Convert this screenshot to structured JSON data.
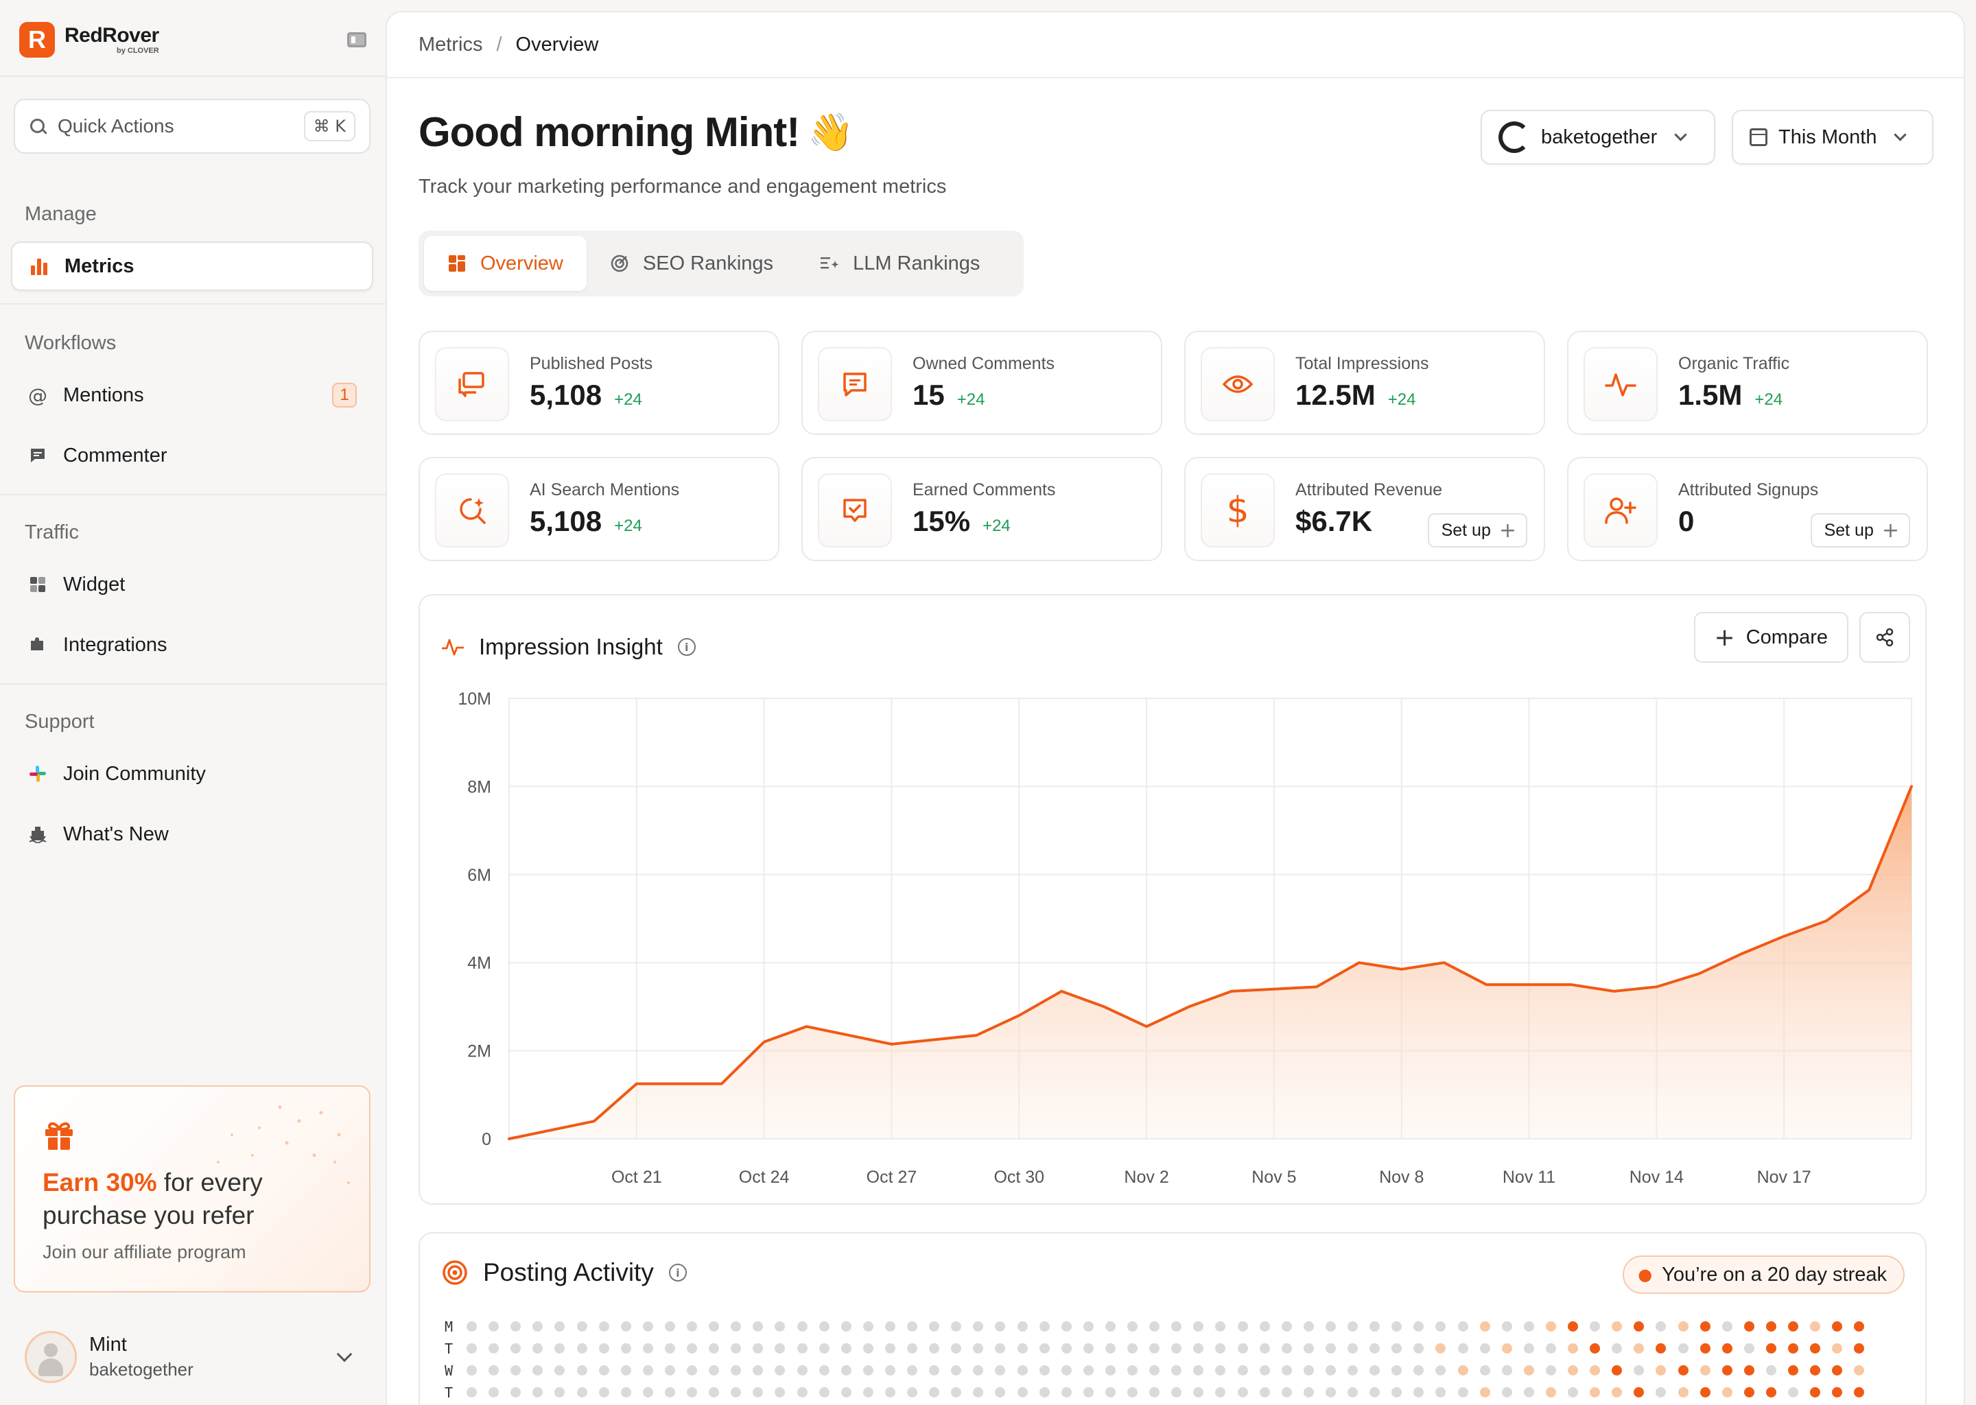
{
  "sidebar": {
    "logo": {
      "mark": "R",
      "name": "RedRover",
      "sub": "by CLOVER"
    },
    "quick_actions": {
      "label": "Quick Actions",
      "shortcut": "⌘ K"
    },
    "sections": [
      {
        "label": "Manage",
        "items": [
          {
            "label": "Metrics",
            "icon": "bar-chart-icon",
            "active": true
          }
        ]
      },
      {
        "label": "Workflows",
        "items": [
          {
            "label": "Mentions",
            "icon": "at-sign-icon",
            "badge": "1"
          },
          {
            "label": "Commenter",
            "icon": "comment-icon"
          }
        ]
      },
      {
        "label": "Traffic",
        "items": [
          {
            "label": "Widget",
            "icon": "grid-icon"
          },
          {
            "label": "Integrations",
            "icon": "puzzle-icon"
          }
        ]
      },
      {
        "label": "Support",
        "items": [
          {
            "label": "Join Community",
            "icon": "slack-icon"
          },
          {
            "label": "What's New",
            "icon": "ship-icon"
          }
        ]
      }
    ],
    "promo": {
      "accent": "Earn 30%",
      "rest": " for every purchase you refer",
      "subtitle": "Join our affiliate program"
    },
    "user": {
      "name": "Mint",
      "handle": "baketogether"
    }
  },
  "breadcrumb": {
    "parent": "Metrics",
    "separator": "/",
    "current": "Overview"
  },
  "header": {
    "greeting": "Good morning Mint!",
    "wave": "👋",
    "subtitle": "Track your marketing performance and engagement metrics",
    "account_select": "baketogether",
    "period_select": "This Month"
  },
  "tabs": [
    {
      "label": "Overview",
      "active": true
    },
    {
      "label": "SEO Rankings",
      "active": false
    },
    {
      "label": "LLM Rankings",
      "active": false
    }
  ],
  "stats": [
    {
      "label": "Published Posts",
      "value": "5,108",
      "delta": "+24",
      "icon": "posts-icon"
    },
    {
      "label": "Owned Comments",
      "value": "15",
      "delta": "+24",
      "icon": "comment-icon"
    },
    {
      "label": "Total Impressions",
      "value": "12.5M",
      "delta": "+24",
      "icon": "eye-icon"
    },
    {
      "label": "Organic Traffic",
      "value": "1.5M",
      "delta": "+24",
      "icon": "activity-icon"
    },
    {
      "label": "AI Search Mentions",
      "value": "5,108",
      "delta": "+24",
      "icon": "ai-search-icon"
    },
    {
      "label": "Earned Comments",
      "value": "15%",
      "delta": "+24",
      "icon": "comment-check-icon"
    },
    {
      "label": "Attributed Revenue",
      "value": "$6.7K",
      "delta": "",
      "setup": "Set up",
      "icon": "dollar-icon"
    },
    {
      "label": "Attributed Signups",
      "value": "0",
      "delta": "",
      "setup": "Set up",
      "icon": "user-plus-icon"
    }
  ],
  "impression_card": {
    "title": "Impression Insight",
    "compare_label": "Compare"
  },
  "chart_data": {
    "type": "area",
    "title": "Impression Insight",
    "xlabel": "",
    "ylabel": "",
    "y_ticks": [
      "0",
      "2M",
      "4M",
      "6M",
      "8M",
      "10M"
    ],
    "ylim": [
      0,
      10000000
    ],
    "x_tick_labels": [
      "Oct 21",
      "Oct 24",
      "Oct 27",
      "Oct 30",
      "Nov 2",
      "Nov 5",
      "Nov 8",
      "Nov 11",
      "Nov 14",
      "Nov 17"
    ],
    "x": [
      "Oct 18",
      "Oct 19",
      "Oct 20",
      "Oct 21",
      "Oct 22",
      "Oct 23",
      "Oct 24",
      "Oct 25",
      "Oct 26",
      "Oct 27",
      "Oct 28",
      "Oct 29",
      "Oct 30",
      "Oct 31",
      "Nov 1",
      "Nov 2",
      "Nov 3",
      "Nov 4",
      "Nov 5",
      "Nov 6",
      "Nov 7",
      "Nov 8",
      "Nov 9",
      "Nov 10",
      "Nov 11",
      "Nov 12",
      "Nov 13",
      "Nov 14",
      "Nov 15",
      "Nov 16",
      "Nov 17",
      "Nov 18",
      "Nov 19",
      "Nov 20"
    ],
    "series": [
      {
        "values": [
          0,
          200000,
          400000,
          1250000,
          1250000,
          1250000,
          2200000,
          2550000,
          2350000,
          2150000,
          2250000,
          2350000,
          2800000,
          3350000,
          3000000,
          2550000,
          3000000,
          3350000,
          3400000,
          3450000,
          4000000,
          3850000,
          4000000,
          3500000,
          3500000,
          3500000,
          3350000,
          3450000,
          3750000,
          4200000,
          4600000,
          4950000,
          5650000,
          8000000
        ]
      }
    ],
    "grid": true,
    "legend": "none"
  },
  "activity_card": {
    "title": "Posting Activity",
    "streak": "You’re on a 20 day streak",
    "day_labels": [
      "M",
      "T",
      "W",
      "T"
    ]
  },
  "colors": {
    "accent": "#f05a14",
    "delta": "#1f9d55"
  }
}
